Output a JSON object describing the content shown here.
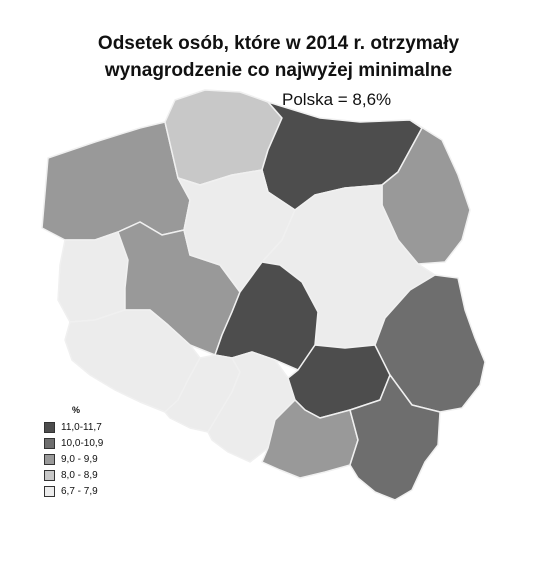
{
  "title_lines": [
    "Odsetek osób, które w 2014 r. otrzymały",
    "wynagrodzenie co najwyżej minimalne"
  ],
  "national_label": "Polska =  8,6%",
  "legend": {
    "unit": "%",
    "classes": [
      {
        "label": "11,0-11,7",
        "color": "#4d4d4d"
      },
      {
        "label": "10,0-10,9",
        "color": "#6e6e6e"
      },
      {
        "label": "9,0 -  9,9",
        "color": "#999999"
      },
      {
        "label": "8,0 - 8,9",
        "color": "#c8c8c8"
      },
      {
        "label": "6,7 - 7,9",
        "color": "#ececec"
      }
    ]
  },
  "regions": [
    {
      "id": "zachodniopomorskie",
      "class": 2
    },
    {
      "id": "pomorskie",
      "class": 3
    },
    {
      "id": "warminsko-mazurskie",
      "class": 0
    },
    {
      "id": "podlaskie",
      "class": 2
    },
    {
      "id": "lubuskie",
      "class": 4
    },
    {
      "id": "wielkopolskie",
      "class": 2
    },
    {
      "id": "kujawsko-pomorskie",
      "class": 4
    },
    {
      "id": "mazowieckie",
      "class": 4
    },
    {
      "id": "lodzkie",
      "class": 0
    },
    {
      "id": "dolnoslaskie",
      "class": 4
    },
    {
      "id": "opolskie",
      "class": 4
    },
    {
      "id": "slaskie",
      "class": 4
    },
    {
      "id": "swietokrzyskie",
      "class": 0
    },
    {
      "id": "lubelskie",
      "class": 1
    },
    {
      "id": "malopolskie",
      "class": 2
    },
    {
      "id": "podkarpackie",
      "class": 1
    }
  ]
}
